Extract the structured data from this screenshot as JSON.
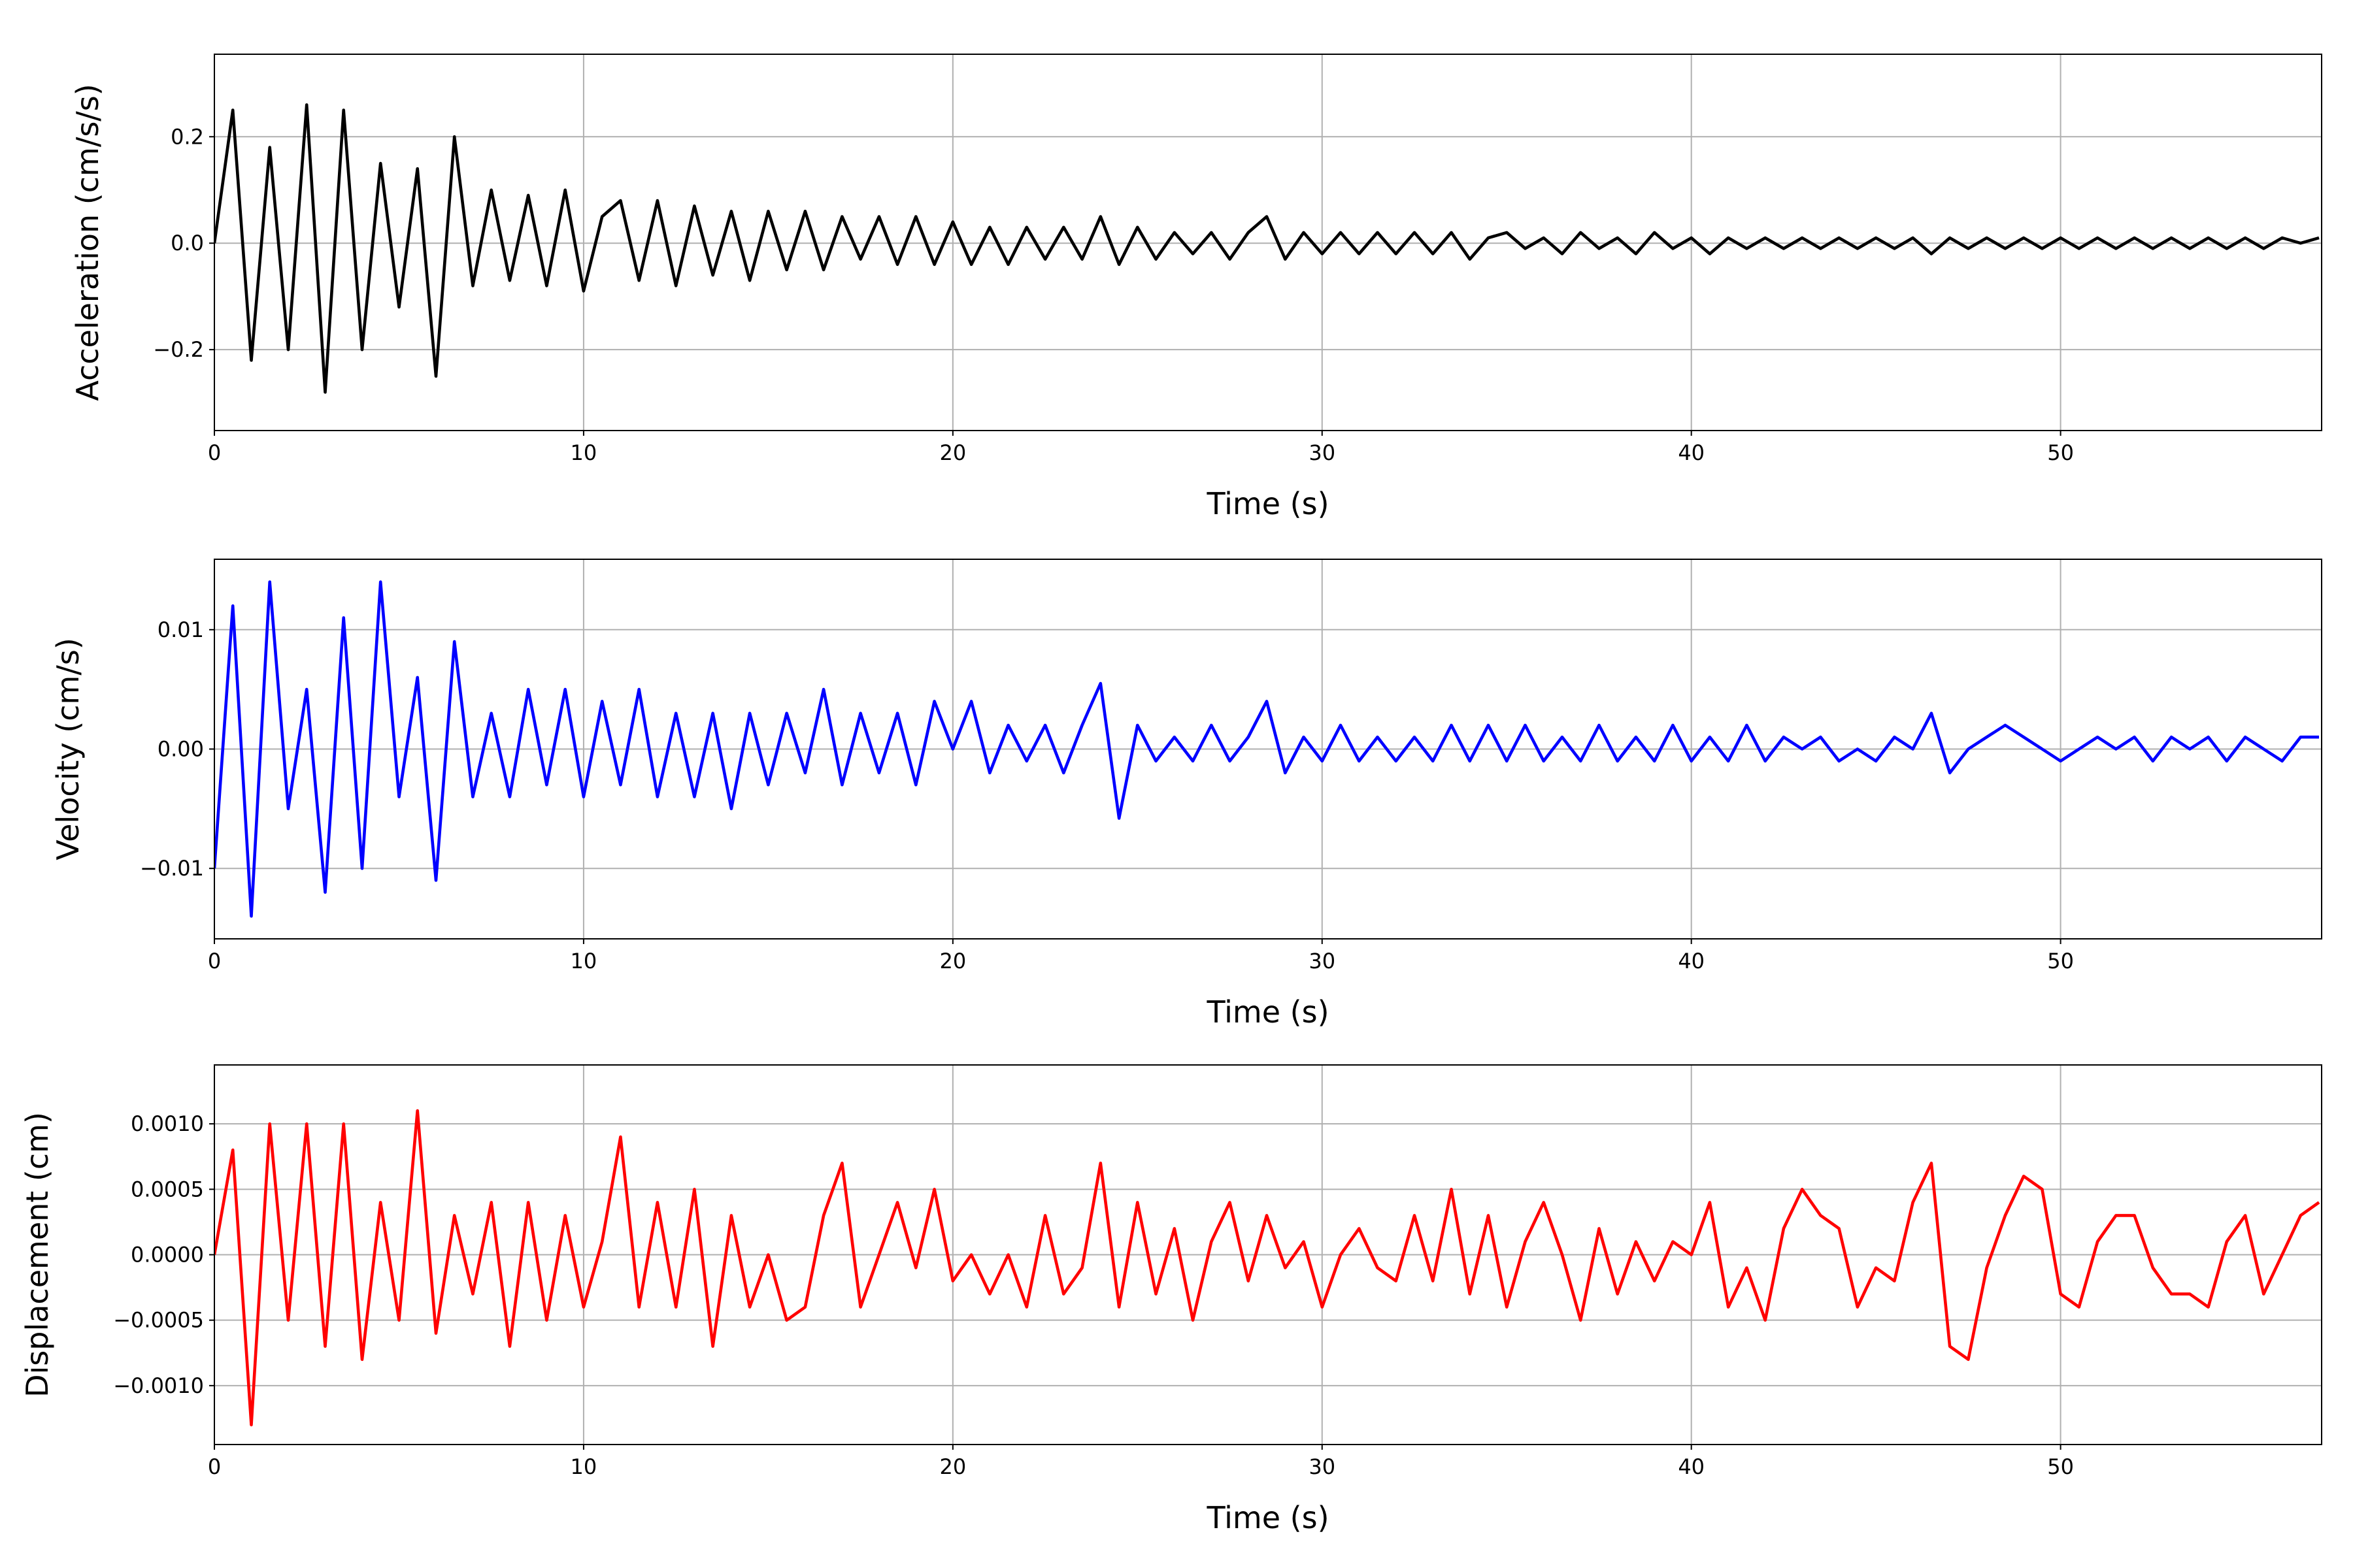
{
  "chart_data": [
    {
      "type": "line",
      "xlabel": "Time (s)",
      "ylabel": "Acceleration (cm/s/s)",
      "color": "#000000",
      "grid": true,
      "xlim": [
        0,
        57.07
      ],
      "ylim": [
        -0.352,
        0.355
      ],
      "xticks": [
        0,
        10,
        20,
        30,
        40,
        50
      ],
      "yticks": [
        {
          "value": -0.2,
          "label": "−0.2"
        },
        {
          "value": 0,
          "label": "0.0"
        },
        0.2
      ],
      "x": [
        0,
        0.5,
        1,
        1.5,
        2,
        2.5,
        3,
        3.5,
        4,
        4.5,
        5,
        5.5,
        6,
        6.5,
        7,
        7.5,
        8,
        8.5,
        9,
        9.5,
        10,
        10.5,
        11,
        11.5,
        12,
        12.5,
        13,
        13.5,
        14,
        14.5,
        15,
        15.5,
        16,
        16.5,
        17,
        17.5,
        18,
        18.5,
        19,
        19.5,
        20,
        20.5,
        21,
        21.5,
        22,
        22.5,
        23,
        23.5,
        24,
        24.5,
        25,
        25.5,
        26,
        26.5,
        27,
        27.5,
        28,
        28.5,
        29,
        29.5,
        30,
        30.5,
        31,
        31.5,
        32,
        32.5,
        33,
        33.5,
        34,
        34.5,
        35,
        35.5,
        36,
        36.5,
        37,
        37.5,
        38,
        38.5,
        39,
        39.5,
        40,
        40.5,
        41,
        41.5,
        42,
        42.5,
        43,
        43.5,
        44,
        44.5,
        45,
        45.5,
        46,
        46.5,
        47,
        47.5,
        48,
        48.5,
        49,
        49.5,
        50,
        50.5,
        51,
        51.5,
        52,
        52.5,
        53,
        53.5,
        54,
        54.5,
        55,
        55.5,
        56,
        56.5,
        57
      ],
      "values": [
        0,
        0.25,
        -0.22,
        0.18,
        -0.2,
        0.26,
        -0.28,
        0.25,
        -0.2,
        0.15,
        -0.12,
        0.14,
        -0.25,
        0.2,
        -0.08,
        0.1,
        -0.07,
        0.09,
        -0.08,
        0.1,
        -0.09,
        0.05,
        0.08,
        -0.07,
        0.08,
        -0.08,
        0.07,
        -0.06,
        0.06,
        -0.07,
        0.06,
        -0.05,
        0.06,
        -0.05,
        0.05,
        -0.03,
        0.05,
        -0.04,
        0.05,
        -0.04,
        0.04,
        -0.04,
        0.03,
        -0.04,
        0.03,
        -0.03,
        0.03,
        -0.03,
        0.05,
        -0.04,
        0.03,
        -0.03,
        0.02,
        -0.02,
        0.02,
        -0.03,
        0.02,
        0.05,
        -0.03,
        0.02,
        -0.02,
        0.02,
        -0.02,
        0.02,
        -0.02,
        0.02,
        -0.02,
        0.02,
        -0.03,
        0.01,
        0.02,
        -0.01,
        0.01,
        -0.02,
        0.02,
        -0.01,
        0.01,
        -0.02,
        0.02,
        -0.01,
        0.01,
        -0.02,
        0.01,
        -0.01,
        0.01,
        -0.01,
        0.01,
        -0.01,
        0.01,
        -0.01,
        0.01,
        -0.01,
        0.01,
        -0.02,
        0.01,
        -0.01,
        0.01,
        -0.01,
        0.01,
        -0.01,
        0.01,
        -0.01,
        0.01,
        -0.01,
        0.01,
        -0.01,
        0.01,
        -0.01,
        0.01,
        -0.01,
        0.01,
        -0.01,
        0.01,
        0,
        0.01
      ]
    },
    {
      "type": "line",
      "xlabel": "Time (s)",
      "ylabel": "Velocity (cm/s)",
      "color": "#0000ff",
      "grid": true,
      "xlim": [
        0,
        57.07
      ],
      "ylim": [
        -0.0159,
        0.0159
      ],
      "xticks": [
        0,
        10,
        20,
        30,
        40,
        50
      ],
      "yticks": [
        {
          "value": -0.01,
          "label": "−0.01"
        },
        {
          "value": 0,
          "label": "0.00"
        },
        0.01
      ],
      "x": [
        0,
        0.5,
        1,
        1.5,
        2,
        2.5,
        3,
        3.5,
        4,
        4.5,
        5,
        5.5,
        6,
        6.5,
        7,
        7.5,
        8,
        8.5,
        9,
        9.5,
        10,
        10.5,
        11,
        11.5,
        12,
        12.5,
        13,
        13.5,
        14,
        14.5,
        15,
        15.5,
        16,
        16.5,
        17,
        17.5,
        18,
        18.5,
        19,
        19.5,
        20,
        20.5,
        21,
        21.5,
        22,
        22.5,
        23,
        23.5,
        24,
        24.5,
        25,
        25.5,
        26,
        26.5,
        27,
        27.5,
        28,
        28.5,
        29,
        29.5,
        30,
        30.5,
        31,
        31.5,
        32,
        32.5,
        33,
        33.5,
        34,
        34.5,
        35,
        35.5,
        36,
        36.5,
        37,
        37.5,
        38,
        38.5,
        39,
        39.5,
        40,
        40.5,
        41,
        41.5,
        42,
        42.5,
        43,
        43.5,
        44,
        44.5,
        45,
        45.5,
        46,
        46.5,
        47,
        47.5,
        48,
        48.5,
        49,
        49.5,
        50,
        50.5,
        51,
        51.5,
        52,
        52.5,
        53,
        53.5,
        54,
        54.5,
        55,
        55.5,
        56,
        56.5,
        57
      ],
      "values": [
        -0.01,
        0.012,
        -0.014,
        0.014,
        -0.005,
        0.005,
        -0.012,
        0.011,
        -0.01,
        0.014,
        -0.004,
        0.006,
        -0.011,
        0.009,
        -0.004,
        0.003,
        -0.004,
        0.005,
        -0.003,
        0.005,
        -0.004,
        0.004,
        -0.003,
        0.005,
        -0.004,
        0.003,
        -0.004,
        0.003,
        -0.005,
        0.003,
        -0.003,
        0.003,
        -0.002,
        0.005,
        -0.003,
        0.003,
        -0.002,
        0.003,
        -0.003,
        0.004,
        0,
        0.004,
        -0.002,
        0.002,
        -0.001,
        0.002,
        -0.002,
        0.002,
        0.0055,
        -0.0058,
        0.002,
        -0.001,
        0.001,
        -0.001,
        0.002,
        -0.001,
        0.001,
        0.004,
        -0.002,
        0.001,
        -0.001,
        0.002,
        -0.001,
        0.001,
        -0.001,
        0.001,
        -0.001,
        0.002,
        -0.001,
        0.002,
        -0.001,
        0.002,
        -0.001,
        0.001,
        -0.001,
        0.002,
        -0.001,
        0.001,
        -0.001,
        0.002,
        -0.001,
        0.001,
        -0.001,
        0.002,
        -0.001,
        0.001,
        0,
        0.001,
        -0.001,
        0,
        -0.001,
        0.001,
        0,
        0.003,
        -0.002,
        0,
        0.001,
        0.002,
        0.001,
        0,
        -0.001,
        0,
        0.001,
        0,
        0.001,
        -0.001,
        0.001,
        0,
        0.001,
        -0.001,
        0.001,
        0,
        -0.001,
        0.001,
        0.001
      ]
    },
    {
      "type": "line",
      "xlabel": "Time (s)",
      "ylabel": "Displacement (cm)",
      "color": "#ff0000",
      "grid": true,
      "xlim": [
        0,
        57.07
      ],
      "ylim": [
        -0.00145,
        0.00145
      ],
      "xticks": [
        0,
        10,
        20,
        30,
        40,
        50
      ],
      "yticks": [
        {
          "value": -0.001,
          "label": "−0.0010"
        },
        {
          "value": -0.0005,
          "label": "−0.0005"
        },
        {
          "value": 0,
          "label": "0.0000"
        },
        {
          "value": 0.0005,
          "label": "0.0005"
        },
        {
          "value": 0.001,
          "label": "0.0010"
        }
      ],
      "x": [
        0,
        0.5,
        1,
        1.5,
        2,
        2.5,
        3,
        3.5,
        4,
        4.5,
        5,
        5.5,
        6,
        6.5,
        7,
        7.5,
        8,
        8.5,
        9,
        9.5,
        10,
        10.5,
        11,
        11.5,
        12,
        12.5,
        13,
        13.5,
        14,
        14.5,
        15,
        15.5,
        16,
        16.5,
        17,
        17.5,
        18,
        18.5,
        19,
        19.5,
        20,
        20.5,
        21,
        21.5,
        22,
        22.5,
        23,
        23.5,
        24,
        24.5,
        25,
        25.5,
        26,
        26.5,
        27,
        27.5,
        28,
        28.5,
        29,
        29.5,
        30,
        30.5,
        31,
        31.5,
        32,
        32.5,
        33,
        33.5,
        34,
        34.5,
        35,
        35.5,
        36,
        36.5,
        37,
        37.5,
        38,
        38.5,
        39,
        39.5,
        40,
        40.5,
        41,
        41.5,
        42,
        42.5,
        43,
        43.5,
        44,
        44.5,
        45,
        45.5,
        46,
        46.5,
        47,
        47.5,
        48,
        48.5,
        49,
        49.5,
        50,
        50.5,
        51,
        51.5,
        52,
        52.5,
        53,
        53.5,
        54,
        54.5,
        55,
        55.5,
        56,
        56.5,
        57
      ],
      "values": [
        0,
        0.0008,
        -0.0013,
        0.001,
        -0.0005,
        0.001,
        -0.0007,
        0.001,
        -0.0008,
        0.0004,
        -0.0005,
        0.0011,
        -0.0006,
        0.0003,
        -0.0003,
        0.0004,
        -0.0007,
        0.0004,
        -0.0005,
        0.0003,
        -0.0004,
        0.0001,
        0.0009,
        -0.0004,
        0.0004,
        -0.0004,
        0.0005,
        -0.0007,
        0.0003,
        -0.0004,
        0,
        -0.0005,
        -0.0004,
        0.0003,
        0.0007,
        -0.0004,
        0,
        0.0004,
        -0.0001,
        0.0005,
        -0.0002,
        0,
        -0.0003,
        0,
        -0.0004,
        0.0003,
        -0.0003,
        -0.0001,
        0.0007,
        -0.0004,
        0.0004,
        -0.0003,
        0.0002,
        -0.0005,
        0.0001,
        0.0004,
        -0.0002,
        0.0003,
        -0.0001,
        0.0001,
        -0.0004,
        0,
        0.0002,
        -0.0001,
        -0.0002,
        0.0003,
        -0.0002,
        0.0005,
        -0.0003,
        0.0003,
        -0.0004,
        0.0001,
        0.0004,
        0,
        -0.0005,
        0.0002,
        -0.0003,
        0.0001,
        -0.0002,
        0.0001,
        0,
        0.0004,
        -0.0004,
        -0.0001,
        -0.0005,
        0.0002,
        0.0005,
        0.0003,
        0.0002,
        -0.0004,
        -0.0001,
        -0.0002,
        0.0004,
        0.0007,
        -0.0007,
        -0.0008,
        -0.0001,
        0.0003,
        0.0006,
        0.0005,
        -0.0003,
        -0.0004,
        0.0001,
        0.0003,
        0.0003,
        -0.0001,
        -0.0003,
        -0.0003,
        -0.0004,
        0.0001,
        0.0003,
        -0.0003,
        0,
        0.0003,
        0.0004
      ]
    }
  ]
}
